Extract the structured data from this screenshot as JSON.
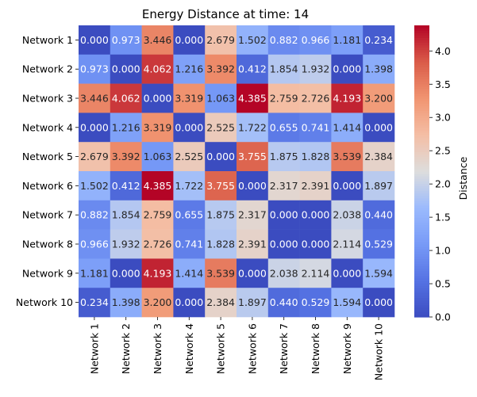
{
  "chart_data": {
    "type": "heatmap",
    "title": "Energy Distance at time: 14",
    "rows": [
      "Network 1",
      "Network 2",
      "Network 3",
      "Network 4",
      "Network 5",
      "Network 6",
      "Network 7",
      "Network 8",
      "Network 9",
      "Network 10"
    ],
    "cols": [
      "Network 1",
      "Network 2",
      "Network 3",
      "Network 4",
      "Network 5",
      "Network 6",
      "Network 7",
      "Network 8",
      "Network 9",
      "Network 10"
    ],
    "values": [
      [
        0.0,
        0.973,
        3.446,
        0.0,
        2.679,
        1.502,
        0.882,
        0.966,
        1.181,
        0.234
      ],
      [
        0.973,
        0.0,
        4.062,
        1.216,
        3.392,
        0.412,
        1.854,
        1.932,
        0.0,
        1.398
      ],
      [
        3.446,
        4.062,
        0.0,
        3.319,
        1.063,
        4.385,
        2.759,
        2.726,
        4.193,
        3.2
      ],
      [
        0.0,
        1.216,
        3.319,
        0.0,
        2.525,
        1.722,
        0.655,
        0.741,
        1.414,
        0.0
      ],
      [
        2.679,
        3.392,
        1.063,
        2.525,
        0.0,
        3.755,
        1.875,
        1.828,
        3.539,
        2.384
      ],
      [
        1.502,
        0.412,
        4.385,
        1.722,
        3.755,
        0.0,
        2.317,
        2.391,
        0.0,
        1.897
      ],
      [
        0.882,
        1.854,
        2.759,
        0.655,
        1.875,
        2.317,
        0.0,
        0.0,
        2.038,
        0.44
      ],
      [
        0.966,
        1.932,
        2.726,
        0.741,
        1.828,
        2.391,
        0.0,
        0.0,
        2.114,
        0.529
      ],
      [
        1.181,
        0.0,
        4.193,
        1.414,
        3.539,
        0.0,
        2.038,
        2.114,
        0.0,
        1.594
      ],
      [
        0.234,
        1.398,
        3.2,
        0.0,
        2.384,
        1.897,
        0.44,
        0.529,
        1.594,
        0.0
      ]
    ],
    "value_format_decimals": 3,
    "colormap": "coolwarm",
    "colorbar": {
      "label": "Distance",
      "min": 0.0,
      "max": 4.385,
      "ticks": [
        0.0,
        0.5,
        1.0,
        1.5,
        2.0,
        2.5,
        3.0,
        3.5,
        4.0
      ],
      "tick_labels": [
        "0.0",
        "0.5",
        "1.0",
        "1.5",
        "2.0",
        "2.5",
        "3.0",
        "3.5",
        "4.0"
      ]
    },
    "colors": {
      "low": "#3b4cc0",
      "mid": "#dddddd",
      "high": "#b40426"
    }
  }
}
